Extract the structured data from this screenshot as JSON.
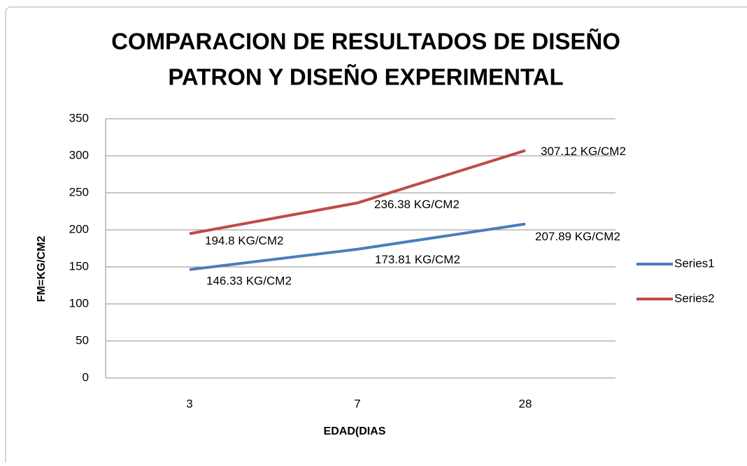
{
  "chart_data": {
    "type": "line",
    "title": [
      "COMPARACION DE RESULTADOS DE DISEÑO",
      "PATRON Y DISEÑO EXPERIMENTAL"
    ],
    "x_label": "EDAD(DIAS",
    "y_label": "FM=KG/CM2",
    "categories": [
      "3",
      "7",
      "28"
    ],
    "series": [
      {
        "name": "Series1",
        "color": "#4a7ebb",
        "values": [
          146.33,
          173.81,
          207.89
        ],
        "value_labels": [
          "146.33 KG/CM2",
          "173.81 KG/CM2",
          "207.89 KG/CM2"
        ]
      },
      {
        "name": "Series2",
        "color": "#be4b48",
        "values": [
          194.8,
          236.38,
          307.12
        ],
        "value_labels": [
          "194.8 KG/CM2",
          "236.38 KG/CM2",
          "307.12 KG/CM2"
        ]
      }
    ],
    "ylim": [
      0,
      350
    ],
    "yticks": [
      0,
      50,
      100,
      150,
      200,
      250,
      300,
      350
    ],
    "grid": true,
    "legend": "right"
  }
}
